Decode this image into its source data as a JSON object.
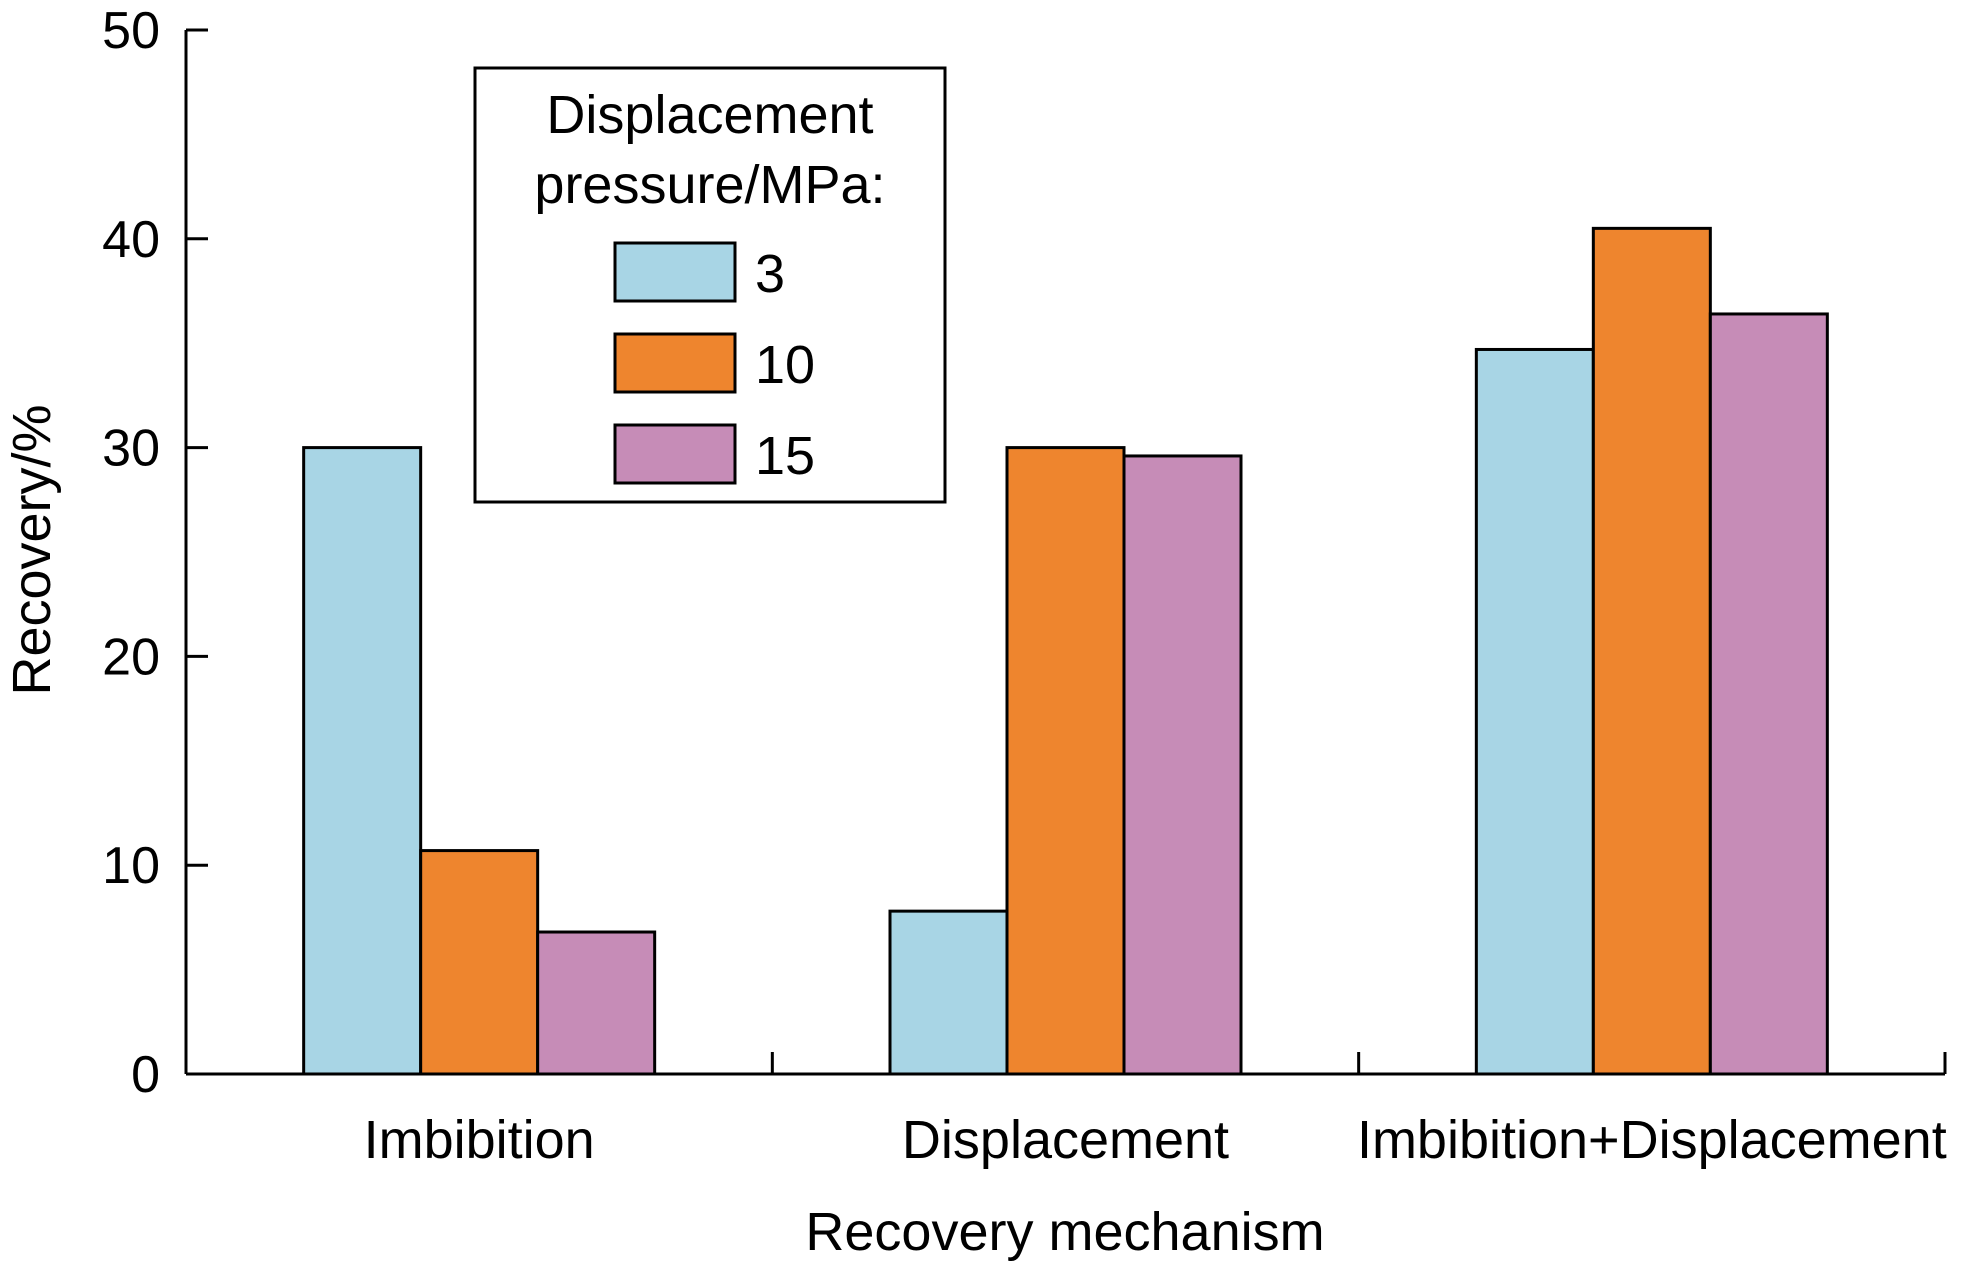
{
  "chart_data": {
    "type": "bar",
    "xlabel": "Recovery mechanism",
    "ylabel": "Recovery/%",
    "ylim": [
      0,
      50
    ],
    "yticks": [
      0,
      10,
      20,
      30,
      40,
      50
    ],
    "categories": [
      "Imbibition",
      "Displacement",
      "Imbibition+Displacement"
    ],
    "legend": {
      "title": "Displacement pressure/MPa:",
      "placement": "top-left"
    },
    "series": [
      {
        "name": "3",
        "color": "#a8d5e5",
        "values": [
          30.0,
          7.8,
          34.7
        ]
      },
      {
        "name": "10",
        "color": "#ee852e",
        "values": [
          10.7,
          30.0,
          40.5
        ]
      },
      {
        "name": "15",
        "color": "#c68cb7",
        "values": [
          6.8,
          29.6,
          36.4
        ]
      }
    ],
    "grid": false
  }
}
